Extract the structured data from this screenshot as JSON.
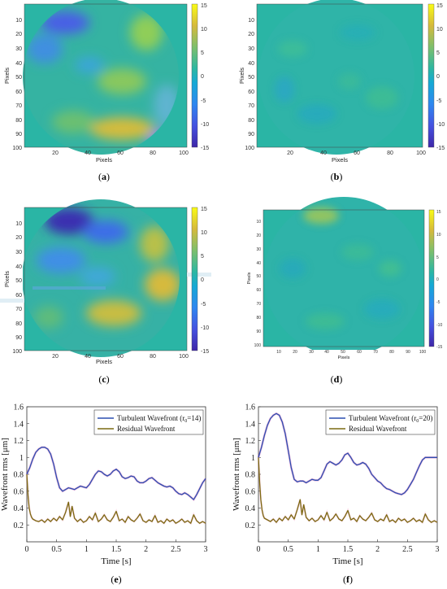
{
  "panels": {
    "a": {
      "caption_prefix": "(",
      "caption_letter": "a",
      "caption_suffix": ")",
      "xlabel": "Pixels",
      "ylabel": "Pixels",
      "xticks": [
        "20",
        "40",
        "60",
        "80",
        "100"
      ],
      "yticks": [
        "10",
        "20",
        "30",
        "40",
        "50",
        "60",
        "70",
        "80",
        "90",
        "100"
      ],
      "cbar_ticks": [
        "15",
        "10",
        "5",
        "0",
        "-5",
        "-10",
        "-15"
      ]
    },
    "b": {
      "caption_prefix": "(",
      "caption_letter": "b",
      "caption_suffix": ")",
      "xlabel": "Pixels",
      "ylabel": "Pixels",
      "xticks": [
        "20",
        "40",
        "60",
        "80",
        "100"
      ],
      "yticks": [
        "10",
        "20",
        "30",
        "40",
        "50",
        "60",
        "70",
        "80",
        "90",
        "100"
      ],
      "cbar_ticks": [
        "15",
        "10",
        "5",
        "0",
        "-5",
        "-10",
        "-15"
      ]
    },
    "c": {
      "caption_prefix": "(",
      "caption_letter": "c",
      "caption_suffix": ")",
      "xlabel": "Pixels",
      "ylabel": "Pixels",
      "xticks": [
        "20",
        "40",
        "60",
        "80",
        "100"
      ],
      "yticks": [
        "10",
        "20",
        "30",
        "40",
        "50",
        "60",
        "70",
        "80",
        "90",
        "100"
      ],
      "cbar_ticks": [
        "15",
        "10",
        "5",
        "0",
        "-5",
        "-10",
        "-15"
      ]
    },
    "d": {
      "caption_prefix": "(",
      "caption_letter": "d",
      "caption_suffix": ")",
      "xlabel": "Pixels",
      "ylabel": "Pixels",
      "xticks": [
        "10",
        "20",
        "30",
        "40",
        "50",
        "60",
        "70",
        "80",
        "90",
        "100"
      ],
      "yticks": [
        "10",
        "20",
        "30",
        "40",
        "50",
        "60",
        "70",
        "80",
        "90",
        "100"
      ],
      "cbar_ticks": [
        "15",
        "10",
        "5",
        "0",
        "-5",
        "-10",
        "-15"
      ]
    },
    "e": {
      "caption_prefix": "(",
      "caption_letter": "e",
      "caption_suffix": ")",
      "xlabel": "Time [s]",
      "ylabel": "Wavefront rms [μm]",
      "legend_turb_pre": "Turbulent Wavefront (r",
      "legend_turb_sub": "0",
      "legend_turb_post": "=14)",
      "legend_resid": "Residual Wavefront",
      "xticks": [
        "0",
        "0.5",
        "1",
        "1.5",
        "2",
        "2.5",
        "3"
      ],
      "yticks": [
        "0.2",
        "0.4",
        "0.6",
        "0.8",
        "1",
        "1.2",
        "1.4",
        "1.6"
      ]
    },
    "f": {
      "caption_prefix": "(",
      "caption_letter": "f",
      "caption_suffix": ")",
      "xlabel": "Time [s]",
      "ylabel": "Wavefront rms [μm]",
      "legend_turb_pre": "Turbulent Wavefront (r",
      "legend_turb_sub": "0",
      "legend_turb_post": "=20)",
      "legend_resid": "Residual Wavefront",
      "xticks": [
        "0",
        "0.5",
        "1",
        "1.5",
        "2",
        "2.5",
        "3"
      ],
      "yticks": [
        "0.2",
        "0.4",
        "0.6",
        "0.8",
        "1",
        "1.2",
        "1.4",
        "1.6"
      ]
    }
  },
  "colors": {
    "turbulent": "#2b4fb0",
    "residual": "#7a6a10",
    "residual_glow": "#f0a0c0",
    "turbulent_glow": "#d040a0",
    "colormap_mid": "#2ab5a5"
  },
  "chart_data": [
    {
      "panel": "e",
      "type": "line",
      "xlim": [
        0,
        3
      ],
      "ylim": [
        0,
        1.6
      ],
      "series": [
        {
          "name": "Turbulent Wavefront (r0=14)",
          "x": [
            0,
            0.05,
            0.1,
            0.15,
            0.2,
            0.25,
            0.3,
            0.35,
            0.4,
            0.45,
            0.5,
            0.55,
            0.6,
            0.65,
            0.7,
            0.75,
            0.8,
            0.85,
            0.9,
            0.95,
            1.0,
            1.05,
            1.1,
            1.15,
            1.2,
            1.25,
            1.3,
            1.35,
            1.4,
            1.45,
            1.5,
            1.55,
            1.6,
            1.65,
            1.7,
            1.75,
            1.8,
            1.85,
            1.9,
            1.95,
            2.0,
            2.05,
            2.1,
            2.15,
            2.2,
            2.25,
            2.3,
            2.35,
            2.4,
            2.45,
            2.5,
            2.55,
            2.6,
            2.65,
            2.7,
            2.75,
            2.8,
            2.85,
            2.9,
            2.95,
            3.0
          ],
          "y": [
            0.8,
            0.88,
            0.98,
            1.06,
            1.1,
            1.12,
            1.12,
            1.1,
            1.04,
            0.92,
            0.76,
            0.64,
            0.6,
            0.62,
            0.64,
            0.63,
            0.62,
            0.64,
            0.66,
            0.65,
            0.64,
            0.68,
            0.74,
            0.8,
            0.84,
            0.83,
            0.8,
            0.78,
            0.8,
            0.84,
            0.86,
            0.83,
            0.77,
            0.75,
            0.76,
            0.78,
            0.77,
            0.72,
            0.7,
            0.7,
            0.72,
            0.75,
            0.76,
            0.73,
            0.7,
            0.68,
            0.66,
            0.65,
            0.66,
            0.64,
            0.6,
            0.57,
            0.56,
            0.58,
            0.56,
            0.53,
            0.5,
            0.56,
            0.63,
            0.7,
            0.75
          ]
        },
        {
          "name": "Residual Wavefront",
          "x": [
            0,
            0.02,
            0.04,
            0.06,
            0.08,
            0.1,
            0.15,
            0.2,
            0.25,
            0.3,
            0.35,
            0.4,
            0.45,
            0.5,
            0.55,
            0.6,
            0.65,
            0.7,
            0.73,
            0.76,
            0.8,
            0.85,
            0.9,
            0.95,
            1.0,
            1.05,
            1.1,
            1.15,
            1.2,
            1.25,
            1.3,
            1.35,
            1.4,
            1.45,
            1.5,
            1.55,
            1.6,
            1.65,
            1.7,
            1.75,
            1.8,
            1.85,
            1.9,
            1.95,
            2.0,
            2.05,
            2.1,
            2.15,
            2.2,
            2.25,
            2.3,
            2.35,
            2.4,
            2.45,
            2.5,
            2.55,
            2.6,
            2.65,
            2.7,
            2.75,
            2.8,
            2.85,
            2.9,
            2.95,
            3.0
          ],
          "y": [
            0.8,
            0.55,
            0.4,
            0.33,
            0.29,
            0.27,
            0.25,
            0.24,
            0.26,
            0.23,
            0.27,
            0.24,
            0.28,
            0.25,
            0.3,
            0.26,
            0.35,
            0.47,
            0.3,
            0.42,
            0.28,
            0.24,
            0.27,
            0.23,
            0.25,
            0.3,
            0.26,
            0.34,
            0.24,
            0.27,
            0.32,
            0.26,
            0.24,
            0.29,
            0.36,
            0.25,
            0.27,
            0.23,
            0.3,
            0.26,
            0.24,
            0.28,
            0.33,
            0.25,
            0.23,
            0.26,
            0.24,
            0.31,
            0.23,
            0.25,
            0.22,
            0.27,
            0.24,
            0.26,
            0.22,
            0.24,
            0.27,
            0.23,
            0.25,
            0.22,
            0.32,
            0.25,
            0.22,
            0.24,
            0.22
          ]
        }
      ]
    },
    {
      "panel": "f",
      "type": "line",
      "xlim": [
        0,
        3
      ],
      "ylim": [
        0,
        1.6
      ],
      "series": [
        {
          "name": "Turbulent Wavefront (r0=20)",
          "x": [
            0,
            0.05,
            0.1,
            0.15,
            0.2,
            0.25,
            0.3,
            0.35,
            0.4,
            0.45,
            0.5,
            0.55,
            0.6,
            0.65,
            0.7,
            0.75,
            0.8,
            0.85,
            0.9,
            0.95,
            1.0,
            1.05,
            1.1,
            1.15,
            1.2,
            1.25,
            1.3,
            1.35,
            1.4,
            1.45,
            1.5,
            1.55,
            1.6,
            1.65,
            1.7,
            1.75,
            1.8,
            1.85,
            1.9,
            1.95,
            2.0,
            2.05,
            2.1,
            2.15,
            2.2,
            2.25,
            2.3,
            2.35,
            2.4,
            2.45,
            2.5,
            2.55,
            2.6,
            2.65,
            2.7,
            2.75,
            2.8,
            2.85,
            2.9,
            2.95,
            3.0
          ],
          "y": [
            1.0,
            1.12,
            1.26,
            1.38,
            1.46,
            1.5,
            1.52,
            1.5,
            1.42,
            1.28,
            1.08,
            0.88,
            0.74,
            0.71,
            0.72,
            0.72,
            0.7,
            0.72,
            0.74,
            0.73,
            0.73,
            0.76,
            0.84,
            0.92,
            0.95,
            0.93,
            0.91,
            0.93,
            0.97,
            1.03,
            1.05,
            1.0,
            0.94,
            0.91,
            0.92,
            0.94,
            0.92,
            0.87,
            0.8,
            0.76,
            0.72,
            0.7,
            0.66,
            0.63,
            0.62,
            0.6,
            0.58,
            0.57,
            0.56,
            0.58,
            0.62,
            0.68,
            0.74,
            0.82,
            0.9,
            0.97,
            1.0,
            1.0,
            1.0,
            1.0,
            1.0
          ]
        },
        {
          "name": "Residual Wavefront",
          "x": [
            0,
            0.02,
            0.04,
            0.06,
            0.08,
            0.1,
            0.15,
            0.2,
            0.25,
            0.3,
            0.35,
            0.4,
            0.45,
            0.5,
            0.55,
            0.6,
            0.65,
            0.7,
            0.73,
            0.76,
            0.8,
            0.85,
            0.9,
            0.95,
            1.0,
            1.05,
            1.1,
            1.15,
            1.2,
            1.25,
            1.3,
            1.35,
            1.4,
            1.45,
            1.5,
            1.55,
            1.6,
            1.65,
            1.7,
            1.75,
            1.8,
            1.85,
            1.9,
            1.95,
            2.0,
            2.05,
            2.1,
            2.15,
            2.2,
            2.25,
            2.3,
            2.35,
            2.4,
            2.45,
            2.5,
            2.55,
            2.6,
            2.65,
            2.7,
            2.75,
            2.8,
            2.85,
            2.9,
            2.95,
            3.0
          ],
          "y": [
            1.0,
            0.7,
            0.5,
            0.38,
            0.31,
            0.28,
            0.26,
            0.24,
            0.27,
            0.23,
            0.28,
            0.25,
            0.3,
            0.26,
            0.32,
            0.27,
            0.38,
            0.5,
            0.32,
            0.44,
            0.29,
            0.25,
            0.28,
            0.24,
            0.26,
            0.31,
            0.26,
            0.35,
            0.25,
            0.28,
            0.33,
            0.27,
            0.25,
            0.3,
            0.37,
            0.26,
            0.28,
            0.24,
            0.31,
            0.27,
            0.25,
            0.29,
            0.34,
            0.26,
            0.24,
            0.27,
            0.25,
            0.32,
            0.24,
            0.26,
            0.23,
            0.28,
            0.25,
            0.27,
            0.23,
            0.25,
            0.28,
            0.24,
            0.26,
            0.23,
            0.33,
            0.26,
            0.23,
            0.25,
            0.23
          ]
        }
      ]
    }
  ]
}
